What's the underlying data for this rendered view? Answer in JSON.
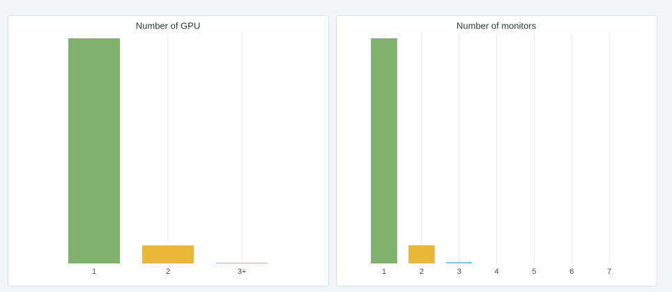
{
  "chart_data": [
    {
      "type": "bar",
      "title": "Number of GPU",
      "categories": [
        "1",
        "2",
        "3+"
      ],
      "values": [
        92.3,
        7.4,
        0.3
      ],
      "colors": [
        "#7eb26d",
        "#eab839",
        "#6ed0e0"
      ]
    },
    {
      "type": "bar",
      "title": "Number of monitors",
      "categories": [
        "1",
        "2",
        "3",
        "4",
        "5",
        "6",
        "7"
      ],
      "values": [
        92.0,
        7.4,
        0.6,
        0,
        0,
        0,
        0
      ],
      "colors": [
        "#7eb26d",
        "#eab839",
        "#6ed0e0",
        "#ef843c",
        "#e24d42",
        "#1f78c1",
        "#ba43a9"
      ]
    }
  ]
}
